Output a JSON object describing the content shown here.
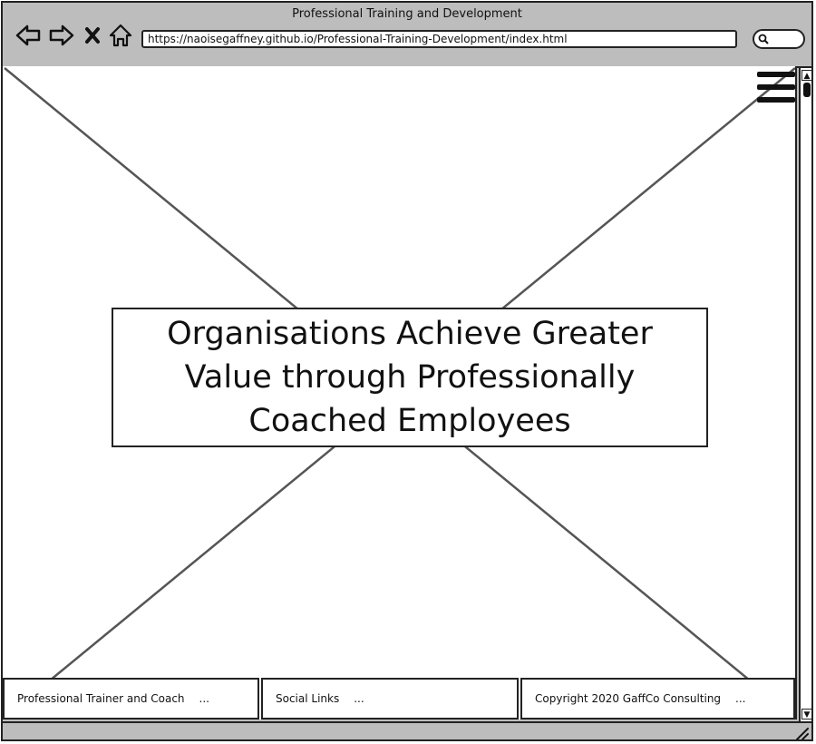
{
  "window": {
    "title": "Professional Training and Development",
    "url": "https://naoisegaffney.github.io/Professional-Training-Development/index.html"
  },
  "toolbar": {
    "back_icon": "back-arrow-icon",
    "forward_icon": "forward-arrow-icon",
    "stop_icon": "close-icon",
    "home_icon": "home-icon",
    "search_icon": "search-icon"
  },
  "hero": {
    "headline": "Organisations Achieve Greater Value through Professionally Coached Employees"
  },
  "footer": {
    "col1": {
      "label": "Professional Trainer and Coach",
      "ellipsis": "..."
    },
    "col2": {
      "label": "Social Links",
      "ellipsis": "..."
    },
    "col3": {
      "label": "Copyright 2020 GaffCo Consulting",
      "ellipsis": "..."
    }
  },
  "scrollbar": {
    "up": "▲",
    "down": "▼"
  }
}
